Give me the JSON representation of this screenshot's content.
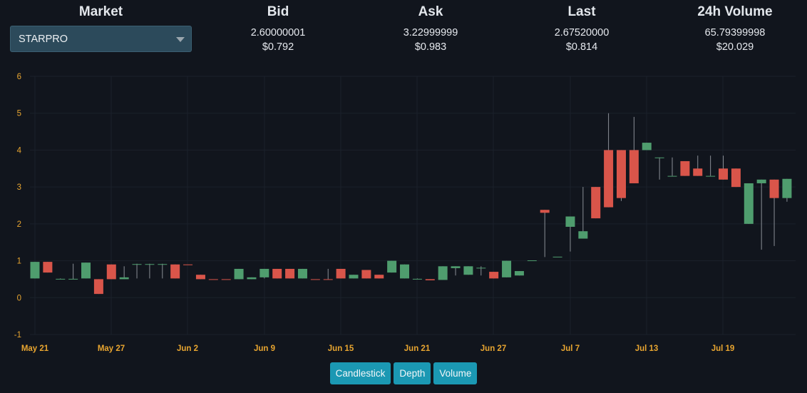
{
  "header": {
    "market_title": "Market",
    "market_selected": "STARPRO",
    "bid_title": "Bid",
    "bid_value": "2.60000001",
    "bid_usd": "$0.792",
    "ask_title": "Ask",
    "ask_value": "3.22999999",
    "ask_usd": "$0.983",
    "last_title": "Last",
    "last_value": "2.67520000",
    "last_usd": "$0.814",
    "volume_title": "24h Volume",
    "volume_value": "65.79399998",
    "volume_usd": "$20.029"
  },
  "buttons": {
    "candlestick": "Candlestick",
    "depth": "Depth",
    "volume": "Volume"
  },
  "colors": {
    "up": "#4f9d6e",
    "down": "#d9554a",
    "axis_label": "#e8a530",
    "grid": "#1b212b",
    "button": "#1b98b3"
  },
  "chart_data": {
    "type": "candlestick",
    "title": "",
    "xlabel": "",
    "ylabel": "",
    "ylim": [
      -1,
      6
    ],
    "yticks": [
      "-1",
      "0",
      "1",
      "2",
      "3",
      "4",
      "5",
      "6"
    ],
    "xticks": [
      "May 21",
      "May 27",
      "Jun 2",
      "Jun 9",
      "Jun 15",
      "Jun 21",
      "Jun 27",
      "Jul 7",
      "Jul 13",
      "Jul 19"
    ],
    "grid": true,
    "candles": [
      {
        "date": "May 21",
        "open": 0.52,
        "high": 0.97,
        "low": 0.52,
        "close": 0.97
      },
      {
        "date": "May 22",
        "open": 0.97,
        "high": 0.97,
        "low": 0.68,
        "close": 0.68
      },
      {
        "date": "May 23",
        "open": 0.5,
        "high": 0.52,
        "low": 0.5,
        "close": 0.51
      },
      {
        "date": "May 24",
        "open": 0.5,
        "high": 0.92,
        "low": 0.5,
        "close": 0.51
      },
      {
        "date": "May 25",
        "open": 0.52,
        "high": 0.95,
        "low": 0.52,
        "close": 0.95
      },
      {
        "date": "May 26",
        "open": 0.5,
        "high": 0.5,
        "low": 0.1,
        "close": 0.1
      },
      {
        "date": "May 27",
        "open": 0.9,
        "high": 0.9,
        "low": 0.5,
        "close": 0.5
      },
      {
        "date": "May 28",
        "open": 0.5,
        "high": 0.85,
        "low": 0.5,
        "close": 0.55
      },
      {
        "date": "May 29",
        "open": 0.9,
        "high": 0.92,
        "low": 0.52,
        "close": 0.91
      },
      {
        "date": "May 30",
        "open": 0.9,
        "high": 0.92,
        "low": 0.52,
        "close": 0.91
      },
      {
        "date": "May 31",
        "open": 0.9,
        "high": 0.92,
        "low": 0.52,
        "close": 0.91
      },
      {
        "date": "Jun 1",
        "open": 0.9,
        "high": 0.9,
        "low": 0.52,
        "close": 0.52
      },
      {
        "date": "Jun 2",
        "open": 0.9,
        "high": 0.9,
        "low": 0.9,
        "close": 0.89
      },
      {
        "date": "Jun 3",
        "open": 0.62,
        "high": 0.62,
        "low": 0.5,
        "close": 0.5
      },
      {
        "date": "Jun 4",
        "open": 0.5,
        "high": 0.5,
        "low": 0.5,
        "close": 0.49
      },
      {
        "date": "Jun 5",
        "open": 0.5,
        "high": 0.5,
        "low": 0.5,
        "close": 0.49
      },
      {
        "date": "Jun 6",
        "open": 0.5,
        "high": 0.78,
        "low": 0.5,
        "close": 0.78
      },
      {
        "date": "Jun 7",
        "open": 0.5,
        "high": 0.55,
        "low": 0.5,
        "close": 0.55
      },
      {
        "date": "Jun 8",
        "open": 0.55,
        "high": 0.78,
        "low": 0.52,
        "close": 0.78
      },
      {
        "date": "Jun 9",
        "open": 0.78,
        "high": 0.78,
        "low": 0.52,
        "close": 0.52
      },
      {
        "date": "Jun 10",
        "open": 0.78,
        "high": 0.78,
        "low": 0.52,
        "close": 0.52
      },
      {
        "date": "Jun 11",
        "open": 0.52,
        "high": 0.78,
        "low": 0.52,
        "close": 0.78
      },
      {
        "date": "Jun 12",
        "open": 0.5,
        "high": 0.5,
        "low": 0.5,
        "close": 0.49
      },
      {
        "date": "Jun 13",
        "open": 0.5,
        "high": 0.78,
        "low": 0.5,
        "close": 0.49
      },
      {
        "date": "Jun 14",
        "open": 0.78,
        "high": 0.78,
        "low": 0.52,
        "close": 0.52
      },
      {
        "date": "Jun 15",
        "open": 0.52,
        "high": 0.62,
        "low": 0.52,
        "close": 0.62
      },
      {
        "date": "Jun 16",
        "open": 0.75,
        "high": 0.75,
        "low": 0.52,
        "close": 0.52
      },
      {
        "date": "Jun 17",
        "open": 0.62,
        "high": 0.62,
        "low": 0.52,
        "close": 0.52
      },
      {
        "date": "Jun 18",
        "open": 0.68,
        "high": 1.0,
        "low": 0.68,
        "close": 1.0
      },
      {
        "date": "Jun 19",
        "open": 0.52,
        "high": 0.9,
        "low": 0.52,
        "close": 0.9
      },
      {
        "date": "Jun 20",
        "open": 0.5,
        "high": 0.52,
        "low": 0.5,
        "close": 0.51
      },
      {
        "date": "Jun 21",
        "open": 0.5,
        "high": 0.5,
        "low": 0.47,
        "close": 0.47
      },
      {
        "date": "Jun 22",
        "open": 0.48,
        "high": 0.85,
        "low": 0.48,
        "close": 0.85
      },
      {
        "date": "Jun 23",
        "open": 0.8,
        "high": 0.85,
        "low": 0.6,
        "close": 0.85
      },
      {
        "date": "Jun 24",
        "open": 0.62,
        "high": 0.85,
        "low": 0.62,
        "close": 0.85
      },
      {
        "date": "Jun 25",
        "open": 0.8,
        "high": 0.85,
        "low": 0.6,
        "close": 0.81
      },
      {
        "date": "Jun 26",
        "open": 0.7,
        "high": 0.7,
        "low": 0.52,
        "close": 0.52
      },
      {
        "date": "Jun 27",
        "open": 0.55,
        "high": 1.0,
        "low": 0.55,
        "close": 1.0
      },
      {
        "date": "Jun 28",
        "open": 0.6,
        "high": 0.72,
        "low": 0.6,
        "close": 0.72
      },
      {
        "date": "Jun 29",
        "open": 1.0,
        "high": 1.0,
        "low": 1.0,
        "close": 1.01
      },
      {
        "date": "Jun 30",
        "open": 2.38,
        "high": 2.38,
        "low": 1.1,
        "close": 2.3
      },
      {
        "date": "Jul 1",
        "open": 1.1,
        "high": 1.1,
        "low": 1.1,
        "close": 1.11
      },
      {
        "date": "Jul 2",
        "open": 1.92,
        "high": 2.2,
        "low": 1.25,
        "close": 2.2
      },
      {
        "date": "Jul 3",
        "open": 1.6,
        "high": 3.0,
        "low": 1.6,
        "close": 1.8
      },
      {
        "date": "Jul 4",
        "open": 3.0,
        "high": 3.0,
        "low": 2.15,
        "close": 2.15
      },
      {
        "date": "Jul 5",
        "open": 4.0,
        "high": 5.0,
        "low": 2.45,
        "close": 2.45
      },
      {
        "date": "Jul 6",
        "open": 4.0,
        "high": 4.0,
        "low": 2.62,
        "close": 2.7
      },
      {
        "date": "Jul 7",
        "open": 4.0,
        "high": 4.9,
        "low": 3.1,
        "close": 3.1
      },
      {
        "date": "Jul 8",
        "open": 4.0,
        "high": 4.2,
        "low": 4.0,
        "close": 4.2
      },
      {
        "date": "Jul 9",
        "open": 3.8,
        "high": 3.8,
        "low": 3.2,
        "close": 3.8
      },
      {
        "date": "Jul 10",
        "open": 3.3,
        "high": 3.8,
        "low": 3.3,
        "close": 3.3
      },
      {
        "date": "Jul 11",
        "open": 3.7,
        "high": 3.7,
        "low": 3.3,
        "close": 3.3
      },
      {
        "date": "Jul 12",
        "open": 3.5,
        "high": 3.85,
        "low": 3.3,
        "close": 3.3
      },
      {
        "date": "Jul 13",
        "open": 3.3,
        "high": 3.85,
        "low": 3.3,
        "close": 3.3
      },
      {
        "date": "Jul 14",
        "open": 3.5,
        "high": 3.85,
        "low": 3.2,
        "close": 3.2
      },
      {
        "date": "Jul 15",
        "open": 3.5,
        "high": 3.5,
        "low": 3.0,
        "close": 3.0
      },
      {
        "date": "Jul 16",
        "open": 2.0,
        "high": 3.1,
        "low": 2.0,
        "close": 3.1
      },
      {
        "date": "Jul 17",
        "open": 3.1,
        "high": 3.2,
        "low": 1.3,
        "close": 3.2
      },
      {
        "date": "Jul 18",
        "open": 3.2,
        "high": 3.2,
        "low": 1.4,
        "close": 2.7
      },
      {
        "date": "Jul 19",
        "open": 2.7,
        "high": 3.22,
        "low": 2.6,
        "close": 3.22
      }
    ]
  }
}
